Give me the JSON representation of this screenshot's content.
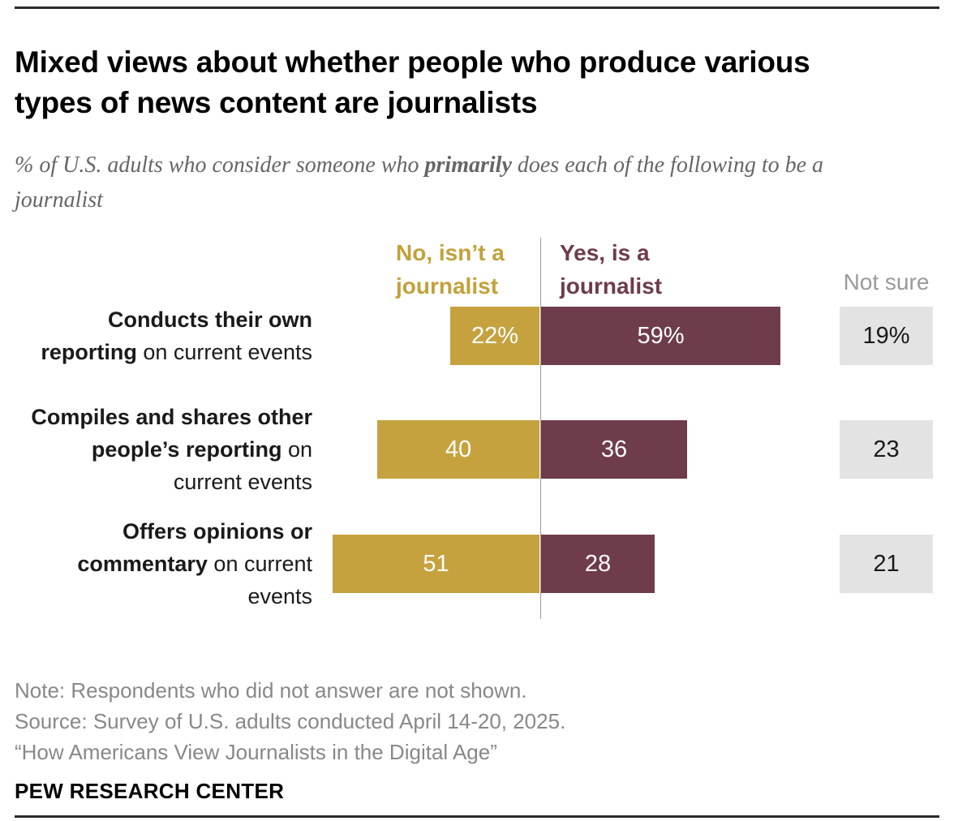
{
  "header": {
    "title": "Mixed views about whether people who produce various types of news content are journalists",
    "subtitle_prefix": "% of U.S. adults who consider someone who ",
    "subtitle_bold": "primarily",
    "subtitle_suffix": " does each of the following to be a journalist"
  },
  "legend": {
    "no_line1": "No, isn’t a",
    "no_line2": "journalist",
    "yes_line1": "Yes, is a",
    "yes_line2": "journalist",
    "not_sure": "Not sure"
  },
  "rows": [
    {
      "label_bold": "Conducts their own reporting",
      "label_rest": " on current events",
      "no_value": 22,
      "no_label": "22%",
      "yes_value": 59,
      "yes_label": "59%",
      "not_sure_label": "19%"
    },
    {
      "label_bold": "Compiles and shares other people’s reporting",
      "label_rest": " on current events",
      "no_value": 40,
      "no_label": "40",
      "yes_value": 36,
      "yes_label": "36",
      "not_sure_label": "23"
    },
    {
      "label_bold": "Offers opinions or commentary",
      "label_rest": " on current events",
      "no_value": 51,
      "no_label": "51",
      "yes_value": 28,
      "yes_label": "28",
      "not_sure_label": "21"
    }
  ],
  "footer": {
    "note": "Note: Respondents who did not answer are not shown.",
    "source": "Source: Survey of U.S. adults conducted April 14-20, 2025.",
    "citation": "“How Americans View Journalists in the Digital Age”",
    "brand": "PEW RESEARCH CENTER"
  },
  "colors": {
    "no_bar": "#C5A23E",
    "yes_bar": "#6E3C4B",
    "not_sure_box": "#E3E3E3",
    "not_sure_text": "#9A9A9A",
    "note_text": "#888888"
  },
  "chart_data": {
    "type": "bar",
    "orientation": "horizontal",
    "diverging": true,
    "title": "Mixed views about whether people who produce various types of news content are journalists",
    "subtitle": "% of U.S. adults who consider someone who primarily does each of the following to be a journalist",
    "categories": [
      "Conducts their own reporting on current events",
      "Compiles and shares other people’s reporting on current events",
      "Offers opinions or commentary on current events"
    ],
    "series": [
      {
        "name": "No, isn’t a journalist",
        "values": [
          22,
          40,
          51
        ],
        "color": "#C5A23E"
      },
      {
        "name": "Yes, is a journalist",
        "values": [
          59,
          36,
          28
        ],
        "color": "#6E3C4B"
      },
      {
        "name": "Not sure",
        "values": [
          19,
          23,
          21
        ],
        "color": "#E3E3E3"
      }
    ],
    "value_labels": [
      [
        "22%",
        "59%",
        "19%"
      ],
      [
        "40",
        "36",
        "23"
      ],
      [
        "51",
        "28",
        "21"
      ]
    ],
    "unit": "%",
    "xlim": [
      0,
      100
    ],
    "grid": false,
    "legend_position": "top"
  }
}
